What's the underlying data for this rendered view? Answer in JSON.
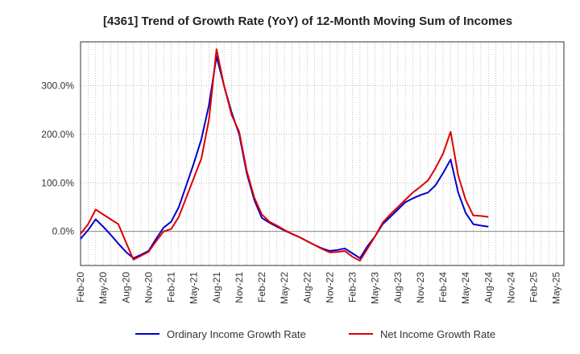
{
  "chart_data": {
    "type": "line",
    "title": "[4361]  Trend of Growth Rate (YoY) of 12-Month Moving Sum of Incomes",
    "xlabel": "",
    "ylabel": "",
    "ylim": [
      -70,
      390
    ],
    "yticks": [
      0,
      100,
      200,
      300
    ],
    "ytick_labels": [
      "0.0%",
      "100.0%",
      "200.0%",
      "300.0%"
    ],
    "x_tick_labels": [
      "Feb-20",
      "May-20",
      "Aug-20",
      "Nov-20",
      "Feb-21",
      "May-21",
      "Aug-21",
      "Nov-21",
      "Feb-22",
      "May-22",
      "Aug-22",
      "Nov-22",
      "Feb-23",
      "May-23",
      "Aug-23",
      "Nov-23",
      "Feb-24",
      "May-24",
      "Aug-24",
      "Nov-24",
      "Feb-25",
      "May-25"
    ],
    "grid": true,
    "legend_position": "bottom",
    "series": [
      {
        "name": "Ordinary Income Growth Rate",
        "color": "#0000cc",
        "values": [
          -15,
          3,
          25,
          10,
          -7,
          -25,
          -42,
          -55,
          -48,
          -40,
          -15,
          8,
          20,
          50,
          95,
          140,
          190,
          260,
          360,
          300,
          245,
          200,
          120,
          65,
          28,
          18,
          10,
          2,
          -5,
          -12,
          -20,
          -28,
          -35,
          -40,
          -38,
          -35,
          -45,
          -55,
          -30,
          -10,
          15,
          30,
          45,
          60,
          68,
          75,
          80,
          95,
          120,
          148,
          80,
          38,
          15,
          12,
          10
        ]
      },
      {
        "name": "Net Income Growth Rate",
        "color": "#dd0000",
        "values": [
          -5,
          15,
          45,
          35,
          25,
          15,
          -22,
          -58,
          -50,
          -42,
          -20,
          0,
          5,
          30,
          70,
          110,
          150,
          230,
          375,
          300,
          240,
          205,
          125,
          70,
          35,
          20,
          12,
          3,
          -5,
          -12,
          -20,
          -28,
          -36,
          -43,
          -42,
          -40,
          -52,
          -60,
          -35,
          -10,
          18,
          35,
          50,
          65,
          80,
          92,
          105,
          130,
          160,
          205,
          115,
          65,
          33,
          32,
          30
        ]
      }
    ]
  },
  "legend": {
    "items": [
      {
        "label": "Ordinary Income Growth Rate",
        "color": "#0000cc"
      },
      {
        "label": "Net Income Growth Rate",
        "color": "#dd0000"
      }
    ]
  }
}
